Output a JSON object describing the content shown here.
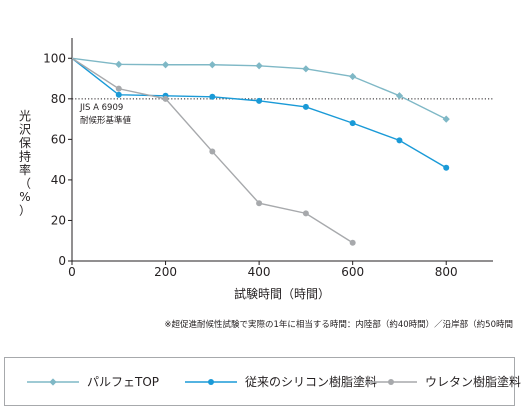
{
  "chart_data": {
    "type": "line",
    "xlabel": "試験時間（時間）",
    "ylabel": "光沢保持率（%）",
    "xlim": [
      0,
      900
    ],
    "ylim": [
      0,
      110
    ],
    "xticks": [
      0,
      200,
      400,
      600,
      800
    ],
    "yticks": [
      0,
      20,
      40,
      60,
      80,
      100
    ],
    "grid": false,
    "legend_position": "bottom",
    "series": [
      {
        "name": "パルフェTOP",
        "color": "#7fb8c6",
        "marker": "diamond",
        "x": [
          0,
          100,
          200,
          300,
          400,
          500,
          600,
          700,
          800
        ],
        "y": [
          100,
          97,
          96.8,
          96.8,
          96.3,
          94.8,
          91,
          81.5,
          70
        ]
      },
      {
        "name": "従来のシリコン樹脂塗料",
        "color": "#1a9ad7",
        "marker": "circle",
        "x": [
          0,
          100,
          200,
          300,
          400,
          500,
          600,
          700,
          800
        ],
        "y": [
          100,
          82,
          81.5,
          81,
          79,
          76,
          68,
          59.5,
          46
        ]
      },
      {
        "name": "ウレタン樹脂塗料",
        "color": "#a7a9ac",
        "marker": "circle",
        "x": [
          0,
          100,
          200,
          300,
          400,
          500,
          600
        ],
        "y": [
          100,
          85,
          80,
          54,
          28.5,
          23.5,
          9
        ]
      }
    ],
    "reference_line": {
      "y": 80,
      "style": "dotted",
      "label_line1": "JIS A 6909",
      "label_line2": "耐候形基準値"
    },
    "footnote": "※超促進耐候性試験で実際の1年に相当する時間：内陸部（約40時間）／沿岸部（約50時間"
  }
}
